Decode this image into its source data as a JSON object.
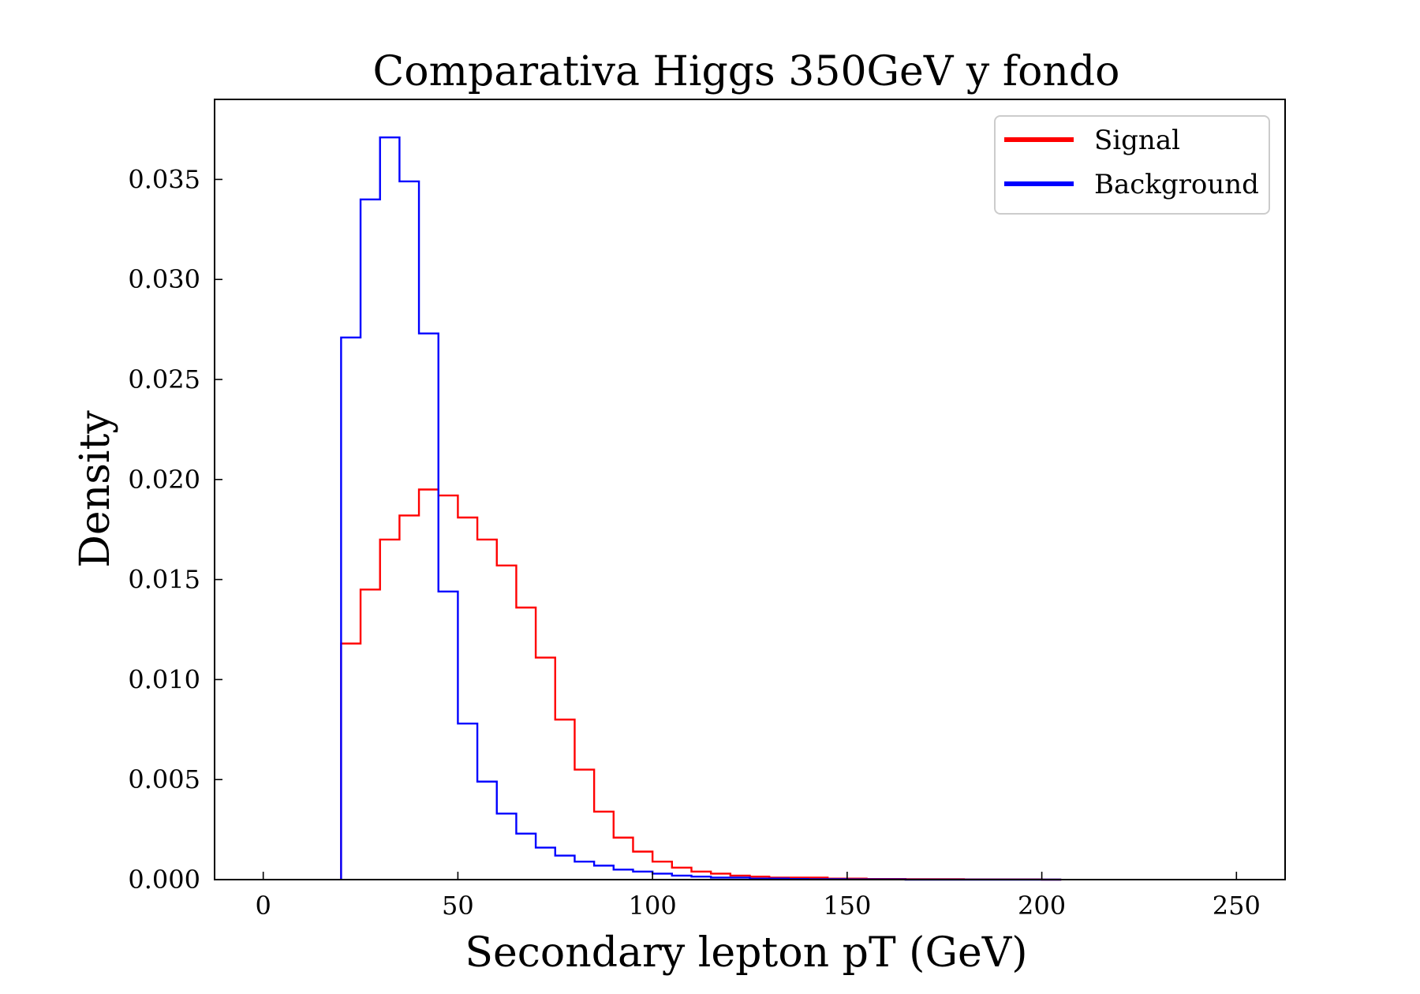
{
  "chart_data": {
    "type": "histogram",
    "title": "Comparativa Higgs 350GeV y fondo",
    "xlabel": "Secondary lepton pT (GeV)",
    "ylabel": "Density",
    "xlim": [
      -12.5,
      262.5
    ],
    "ylim": [
      0,
      0.039
    ],
    "xticks": [
      0,
      50,
      100,
      150,
      200,
      250
    ],
    "xtick_labels": [
      "0",
      "50",
      "100",
      "150",
      "200",
      "250"
    ],
    "yticks": [
      0,
      0.005,
      0.01,
      0.015,
      0.02,
      0.025,
      0.03,
      0.035
    ],
    "ytick_labels": [
      "0.000",
      "0.005",
      "0.010",
      "0.015",
      "0.020",
      "0.025",
      "0.030",
      "0.035"
    ],
    "grid": false,
    "legend_position": "top-right",
    "bin_start": 20,
    "bin_width": 5,
    "series": [
      {
        "name": "Signal",
        "color": "#ff0000",
        "values": [
          0.0118,
          0.0145,
          0.017,
          0.0182,
          0.0195,
          0.0192,
          0.0181,
          0.017,
          0.0157,
          0.0136,
          0.0111,
          0.008,
          0.0055,
          0.0034,
          0.0021,
          0.0014,
          0.0009,
          0.0006,
          0.0004,
          0.0003,
          0.0002,
          0.00015,
          0.0001,
          0.0001,
          0.0001,
          5e-05,
          5e-05,
          3e-05,
          3e-05,
          2e-05,
          2e-05,
          2e-05,
          1e-05,
          1e-05,
          1e-05,
          1e-05,
          0.0
        ]
      },
      {
        "name": "Background",
        "color": "#0000ff",
        "values": [
          0.0271,
          0.034,
          0.0371,
          0.0349,
          0.0273,
          0.0144,
          0.0078,
          0.0049,
          0.0033,
          0.0023,
          0.0016,
          0.0012,
          0.0009,
          0.0007,
          0.0005,
          0.0004,
          0.0003,
          0.0002,
          0.00015,
          0.0001,
          0.0001,
          5e-05,
          5e-05,
          3e-05,
          2e-05,
          2e-05,
          1e-05,
          1e-05,
          1e-05,
          0.0,
          0.0,
          0.0,
          0.0,
          0.0,
          0.0,
          0.0,
          0.0
        ]
      }
    ]
  }
}
